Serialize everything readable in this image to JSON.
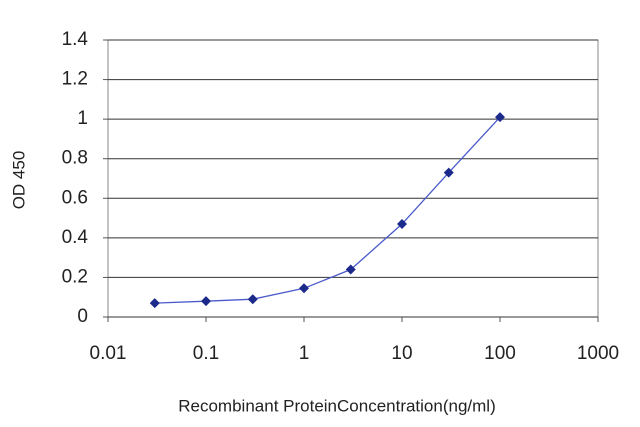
{
  "chart_data": {
    "type": "line",
    "xlabel": "Recombinant ProteinConcentration(ng/ml)",
    "ylabel": "OD 450",
    "x": [
      0.03,
      0.1,
      0.3,
      1,
      3,
      10,
      30,
      100
    ],
    "values": [
      0.07,
      0.08,
      0.09,
      0.145,
      0.24,
      0.47,
      0.73,
      1.01
    ],
    "color": "#4a5acb",
    "marker_color": "#1c2a8c",
    "xscale": "log",
    "xlim": [
      0.01,
      1000
    ],
    "xticks": [
      0.01,
      0.1,
      1,
      10,
      100,
      1000
    ],
    "ylim": [
      0,
      1.4
    ],
    "yticks": [
      0,
      0.2,
      0.4,
      0.6,
      0.8,
      1,
      1.2,
      1.4
    ],
    "grid": true
  }
}
